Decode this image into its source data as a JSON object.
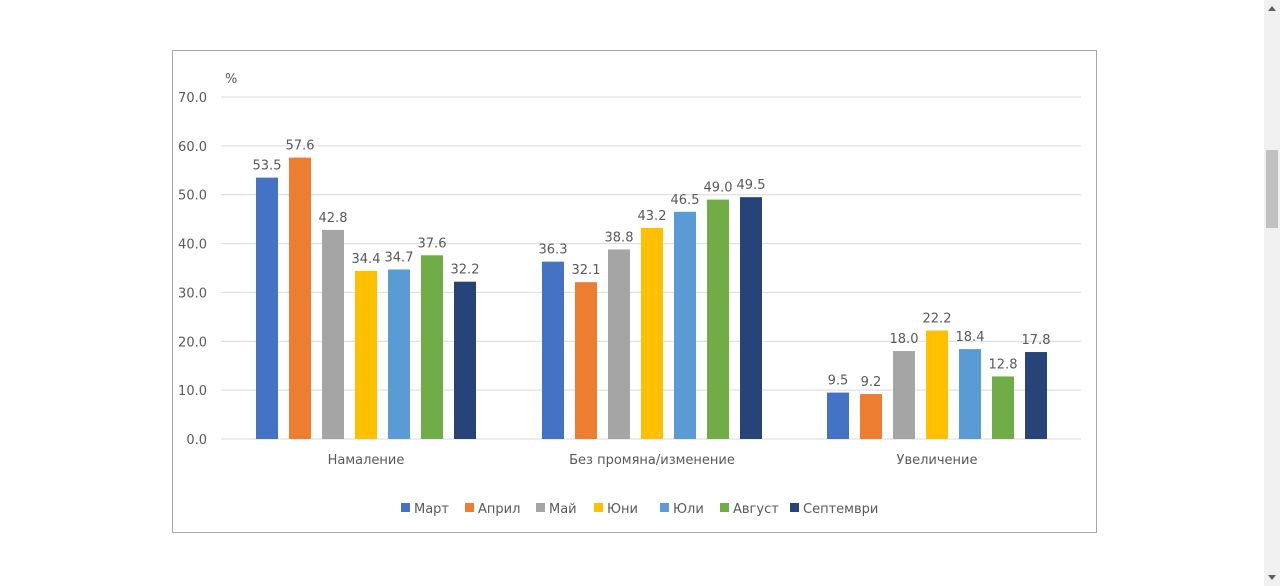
{
  "chart_data": {
    "type": "bar",
    "title": "",
    "ylabel": "%",
    "xlabel": "",
    "ylim": [
      0,
      70
    ],
    "yticks": [
      "0.0",
      "10.0",
      "20.0",
      "30.0",
      "40.0",
      "50.0",
      "60.0",
      "70.0"
    ],
    "ytick_values": [
      0,
      10,
      20,
      30,
      40,
      50,
      60,
      70
    ],
    "grid": true,
    "legend_position": "bottom",
    "categories": [
      "Намаление",
      "Без промяна/изменение",
      "Увеличение"
    ],
    "series": [
      {
        "name": "Март",
        "color": "#4472c4",
        "values": [
          53.5,
          36.3,
          9.5
        ],
        "labels": [
          "53.5",
          "36.3",
          "9.5"
        ]
      },
      {
        "name": "Април",
        "color": "#ed7d31",
        "values": [
          57.6,
          32.1,
          9.2
        ],
        "labels": [
          "57.6",
          "32.1",
          "9.2"
        ]
      },
      {
        "name": "Май",
        "color": "#a5a5a5",
        "values": [
          42.8,
          38.8,
          18.0
        ],
        "labels": [
          "42.8",
          "38.8",
          "18.0"
        ]
      },
      {
        "name": "Юни",
        "color": "#ffc000",
        "values": [
          34.4,
          43.2,
          22.2
        ],
        "labels": [
          "34.4",
          "43.2",
          "22.2"
        ]
      },
      {
        "name": "Юли",
        "color": "#5b9bd5",
        "values": [
          34.7,
          46.5,
          18.4
        ],
        "labels": [
          "34.7",
          "46.5",
          "18.4"
        ]
      },
      {
        "name": "Август",
        "color": "#70ad47",
        "values": [
          37.6,
          49.0,
          12.8
        ],
        "labels": [
          "37.6",
          "49.0",
          "12.8"
        ]
      },
      {
        "name": "Септември",
        "color": "#264478",
        "values": [
          32.2,
          49.5,
          17.8
        ],
        "labels": [
          "32.2",
          "49.5",
          "17.8"
        ]
      }
    ]
  },
  "scrollbar": {
    "up_icon": "scroll-up-arrow-icon",
    "down_icon": "scroll-down-arrow-icon"
  }
}
